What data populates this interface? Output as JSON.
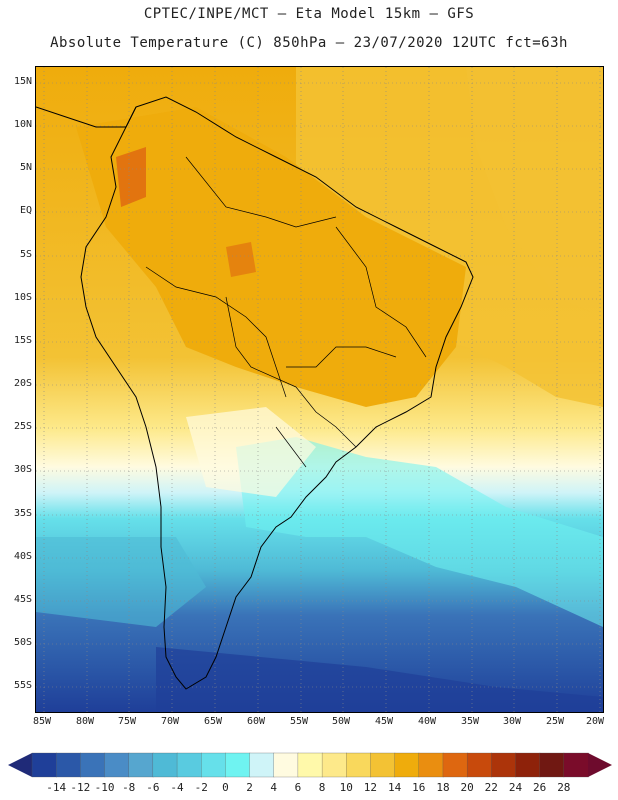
{
  "header": {
    "title_line1": "CPTEC/INPE/MCT –  Eta Model 15km – GFS",
    "title_line2": "Absolute Temperature (C) 850hPa – 23/07/2020 12UTC fct=63h"
  },
  "map": {
    "lat_labels": [
      "15N",
      "10N",
      "5N",
      "EQ",
      "5S",
      "10S",
      "15S",
      "20S",
      "25S",
      "30S",
      "35S",
      "40S",
      "45S",
      "50S",
      "55S"
    ],
    "lon_labels": [
      "85W",
      "80W",
      "75W",
      "70W",
      "65W",
      "60W",
      "55W",
      "50W",
      "45W",
      "40W",
      "35W",
      "30W",
      "25W",
      "20W"
    ],
    "variable": "Absolute Temperature",
    "units": "C",
    "level": "850hPa"
  },
  "colorbar": {
    "ticks": [
      "-14",
      "-12",
      "-10",
      "-8",
      "-6",
      "-4",
      "-2",
      "0",
      "2",
      "4",
      "6",
      "8",
      "10",
      "12",
      "14",
      "16",
      "18",
      "20",
      "22",
      "24",
      "26",
      "28"
    ],
    "colors": [
      "#1f3f99",
      "#2b58a8",
      "#3a73b8",
      "#4a8cc6",
      "#56a6cf",
      "#4fbad6",
      "#59cbe0",
      "#66e0ea",
      "#6ff3f1",
      "#cff4f8",
      "#fffbe0",
      "#fff9aa",
      "#fde98a",
      "#f9d85c",
      "#f3c234",
      "#efac0c",
      "#ea8e10",
      "#de6710",
      "#c84a0c",
      "#ac340a",
      "#8e220a",
      "#701812",
      "#7a0c2a"
    ],
    "low_arrow_color": "#1f2a78",
    "high_arrow_color": "#6e0b2d"
  }
}
